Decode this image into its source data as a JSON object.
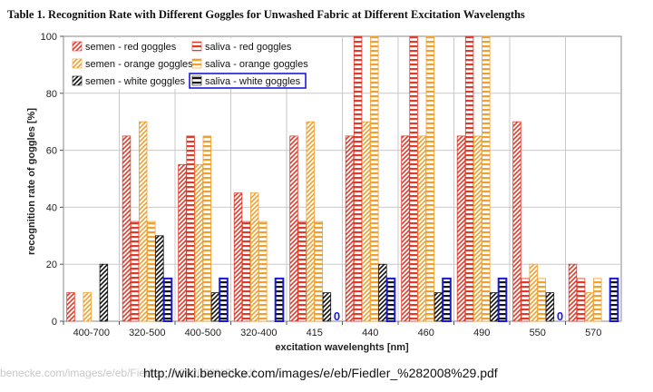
{
  "page": {
    "title": "Table 1. Recognition Rate with Different Goggles for Unwashed Fabric at Different Excitation Wavelengths",
    "watermark": "benecke.com/images/e/eb/Fiedler_%282008%29.pdf",
    "url": "http://wiki.benecke.com/images/e/eb/Fiedler_%282008%29.pdf"
  },
  "chart_data": {
    "type": "bar",
    "title": "Table 1. Recognition Rate with Different Goggles for Unwashed Fabric at Different Excitation Wavelengths",
    "xlabel": "excitation wavelenghts [nm]",
    "ylabel": "recognition rate of goggles [%]",
    "ylim": [
      0,
      100
    ],
    "yticks": [
      0,
      20,
      40,
      60,
      80,
      100
    ],
    "grid": true,
    "legend_position": "top-left",
    "categories": [
      "400-700",
      "320-500",
      "400-500",
      "320-400",
      "415",
      "440",
      "460",
      "490",
      "550",
      "570"
    ],
    "series": [
      {
        "name": "semen - red goggles",
        "color": "#e03a2a",
        "pattern": "diagonal",
        "values": [
          10,
          65,
          55,
          45,
          65,
          65,
          65,
          65,
          70,
          20
        ]
      },
      {
        "name": "saliva - red goggles",
        "color": "#e03a2a",
        "pattern": "horizontal",
        "values": [
          0,
          35,
          65,
          35,
          35,
          100,
          100,
          100,
          15,
          15
        ]
      },
      {
        "name": "semen - orange goggles",
        "color": "#f0a030",
        "pattern": "diagonal",
        "values": [
          10,
          70,
          55,
          45,
          70,
          70,
          65,
          65,
          20,
          10
        ]
      },
      {
        "name": "saliva - orange goggles",
        "color": "#f0a030",
        "pattern": "horizontal",
        "values": [
          0,
          35,
          65,
          35,
          35,
          100,
          100,
          100,
          15,
          15
        ]
      },
      {
        "name": "semen - white goggles",
        "color": "#111111",
        "pattern": "diagonal",
        "values": [
          20,
          30,
          10,
          0,
          10,
          20,
          10,
          10,
          10,
          0
        ]
      },
      {
        "name": "saliva - white goggles",
        "color": "#111111",
        "pattern": "horizontal",
        "highlight": "#1a1ad4",
        "values": [
          0,
          15,
          15,
          15,
          0,
          15,
          15,
          15,
          0,
          15
        ]
      }
    ],
    "annotations": [
      {
        "text": "0",
        "category": "415"
      },
      {
        "text": "0",
        "category": "550"
      }
    ],
    "legend_highlighted": "saliva - white goggles"
  }
}
